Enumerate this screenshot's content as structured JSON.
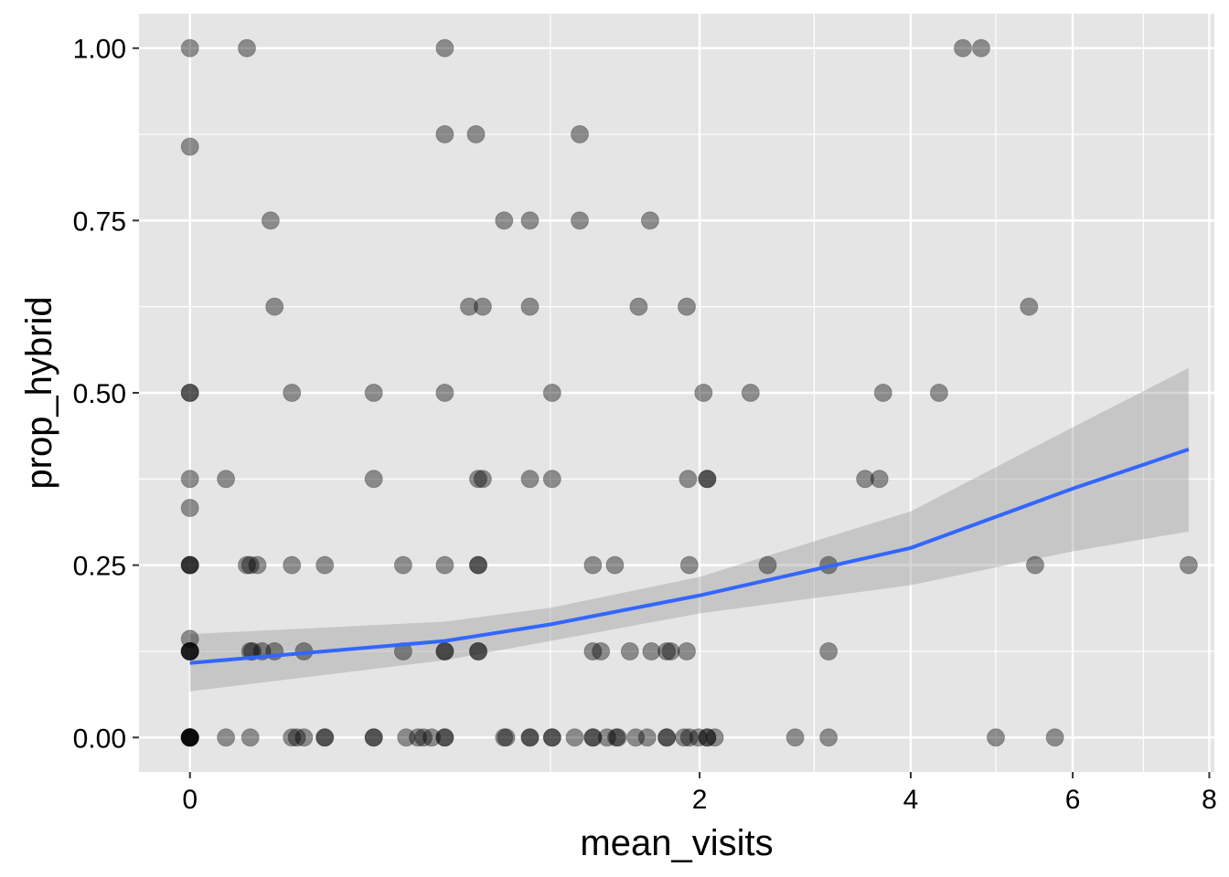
{
  "chart_data": {
    "type": "scatter",
    "x_scale": "sqrt",
    "xlabel": "mean_visits",
    "ylabel": "prop_hybrid",
    "xlim": [
      -0.02,
      8.08
    ],
    "ylim": [
      -0.05,
      1.05
    ],
    "x_ticks": [
      0,
      2,
      4,
      6,
      8
    ],
    "x_tick_labels": [
      "0",
      "2",
      "4",
      "6",
      "8"
    ],
    "x_minor_ticks": [
      1,
      3,
      5,
      7
    ],
    "y_ticks": [
      0,
      0.25,
      0.5,
      0.75,
      1
    ],
    "y_tick_labels": [
      "0.00",
      "0.25",
      "0.50",
      "0.75",
      "1.00"
    ],
    "grid": true,
    "colors": {
      "panel_background": "#e5e5e5",
      "grid": "#ffffff",
      "point": "#000000",
      "trend_line": "#3366ff",
      "confidence_band": "#999999"
    },
    "point_alpha": 0.4,
    "series": [
      {
        "points": [
          [
            0,
            1.0
          ],
          [
            0.025,
            1.0
          ],
          [
            0.5,
            1.0
          ],
          [
            4.6,
            1.0
          ],
          [
            4.82,
            1.0
          ],
          [
            0,
            0.857
          ],
          [
            0.5,
            0.875
          ],
          [
            0.63,
            0.875
          ],
          [
            1.17,
            0.875
          ],
          [
            0.05,
            0.75
          ],
          [
            0.76,
            0.75
          ],
          [
            0.89,
            0.75
          ],
          [
            1.17,
            0.75
          ],
          [
            1.63,
            0.75
          ],
          [
            0.055,
            0.625
          ],
          [
            0.6,
            0.625
          ],
          [
            0.66,
            0.625
          ],
          [
            0.89,
            0.625
          ],
          [
            1.55,
            0.625
          ],
          [
            1.9,
            0.625
          ],
          [
            5.42,
            0.625
          ],
          [
            0,
            0.5
          ],
          [
            0,
            0.5
          ],
          [
            0.08,
            0.5
          ],
          [
            0.26,
            0.5
          ],
          [
            0.5,
            0.5
          ],
          [
            1.01,
            0.5
          ],
          [
            2.03,
            0.5
          ],
          [
            2.42,
            0.5
          ],
          [
            3.7,
            0.5
          ],
          [
            4.32,
            0.5
          ],
          [
            0,
            0.375
          ],
          [
            0.01,
            0.375
          ],
          [
            0.26,
            0.375
          ],
          [
            0.64,
            0.375
          ],
          [
            0.66,
            0.375
          ],
          [
            0.89,
            0.375
          ],
          [
            1.01,
            0.375
          ],
          [
            1.91,
            0.375
          ],
          [
            2.06,
            0.375
          ],
          [
            2.06,
            0.375
          ],
          [
            3.51,
            0.375
          ],
          [
            3.66,
            0.375
          ],
          [
            0,
            0.333
          ],
          [
            0,
            0.25
          ],
          [
            0,
            0.25
          ],
          [
            0,
            0.25
          ],
          [
            0.025,
            0.25
          ],
          [
            0.028,
            0.25
          ],
          [
            0.035,
            0.25
          ],
          [
            0.08,
            0.25
          ],
          [
            0.14,
            0.25
          ],
          [
            0.35,
            0.25
          ],
          [
            0.5,
            0.25
          ],
          [
            0.64,
            0.25
          ],
          [
            0.64,
            0.25
          ],
          [
            1.25,
            0.25
          ],
          [
            1.39,
            0.25
          ],
          [
            1.92,
            0.25
          ],
          [
            2.57,
            0.25
          ],
          [
            3.14,
            0.25
          ],
          [
            5.5,
            0.25
          ],
          [
            7.68,
            0.25
          ],
          [
            0,
            0.143
          ],
          [
            0,
            0.125
          ],
          [
            0,
            0.125
          ],
          [
            0,
            0.125
          ],
          [
            0,
            0.125
          ],
          [
            0.028,
            0.125
          ],
          [
            0.03,
            0.125
          ],
          [
            0.04,
            0.125
          ],
          [
            0.055,
            0.125
          ],
          [
            0.1,
            0.125
          ],
          [
            0.35,
            0.125
          ],
          [
            0.5,
            0.125
          ],
          [
            0.5,
            0.125
          ],
          [
            0.64,
            0.125
          ],
          [
            0.64,
            0.125
          ],
          [
            1.25,
            0.125
          ],
          [
            1.3,
            0.125
          ],
          [
            1.49,
            0.125
          ],
          [
            1.64,
            0.125
          ],
          [
            1.75,
            0.125
          ],
          [
            1.78,
            0.125
          ],
          [
            1.9,
            0.125
          ],
          [
            3.14,
            0.125
          ],
          [
            0,
            0
          ],
          [
            0,
            0
          ],
          [
            0,
            0
          ],
          [
            0,
            0
          ],
          [
            0,
            0
          ],
          [
            0,
            0
          ],
          [
            0.01,
            0
          ],
          [
            0.028,
            0
          ],
          [
            0.08,
            0
          ],
          [
            0.088,
            0
          ],
          [
            0.1,
            0
          ],
          [
            0.14,
            0
          ],
          [
            0.14,
            0
          ],
          [
            0.26,
            0
          ],
          [
            0.26,
            0
          ],
          [
            0.36,
            0
          ],
          [
            0.4,
            0
          ],
          [
            0.42,
            0
          ],
          [
            0.45,
            0
          ],
          [
            0.5,
            0
          ],
          [
            0.5,
            0
          ],
          [
            0.76,
            0
          ],
          [
            0.77,
            0
          ],
          [
            0.89,
            0
          ],
          [
            0.89,
            0
          ],
          [
            1.01,
            0
          ],
          [
            1.01,
            0
          ],
          [
            1.14,
            0
          ],
          [
            1.25,
            0
          ],
          [
            1.25,
            0
          ],
          [
            1.34,
            0
          ],
          [
            1.4,
            0
          ],
          [
            1.41,
            0
          ],
          [
            1.53,
            0
          ],
          [
            1.61,
            0
          ],
          [
            1.75,
            0
          ],
          [
            1.75,
            0
          ],
          [
            1.88,
            0
          ],
          [
            1.92,
            0
          ],
          [
            1.99,
            0
          ],
          [
            2.06,
            0
          ],
          [
            2.06,
            0
          ],
          [
            2.12,
            0
          ],
          [
            2.82,
            0
          ],
          [
            3.14,
            0
          ],
          [
            5.0,
            0
          ],
          [
            5.76,
            0
          ]
        ]
      }
    ],
    "trend": {
      "method": "lm",
      "line": [
        [
          0,
          0.108
        ],
        [
          0.5,
          0.14
        ],
        [
          1,
          0.164
        ],
        [
          2,
          0.206
        ],
        [
          4,
          0.275
        ],
        [
          6,
          0.361
        ],
        [
          7.68,
          0.418
        ]
      ],
      "ci_upper": [
        [
          0,
          0.15
        ],
        [
          0.5,
          0.168
        ],
        [
          1,
          0.188
        ],
        [
          2,
          0.233
        ],
        [
          4,
          0.328
        ],
        [
          6,
          0.45
        ],
        [
          7.68,
          0.536
        ]
      ],
      "ci_lower": [
        [
          0,
          0.067
        ],
        [
          0.5,
          0.112
        ],
        [
          1,
          0.14
        ],
        [
          2,
          0.18
        ],
        [
          4,
          0.221
        ],
        [
          6,
          0.27
        ],
        [
          7.68,
          0.299
        ]
      ]
    }
  }
}
